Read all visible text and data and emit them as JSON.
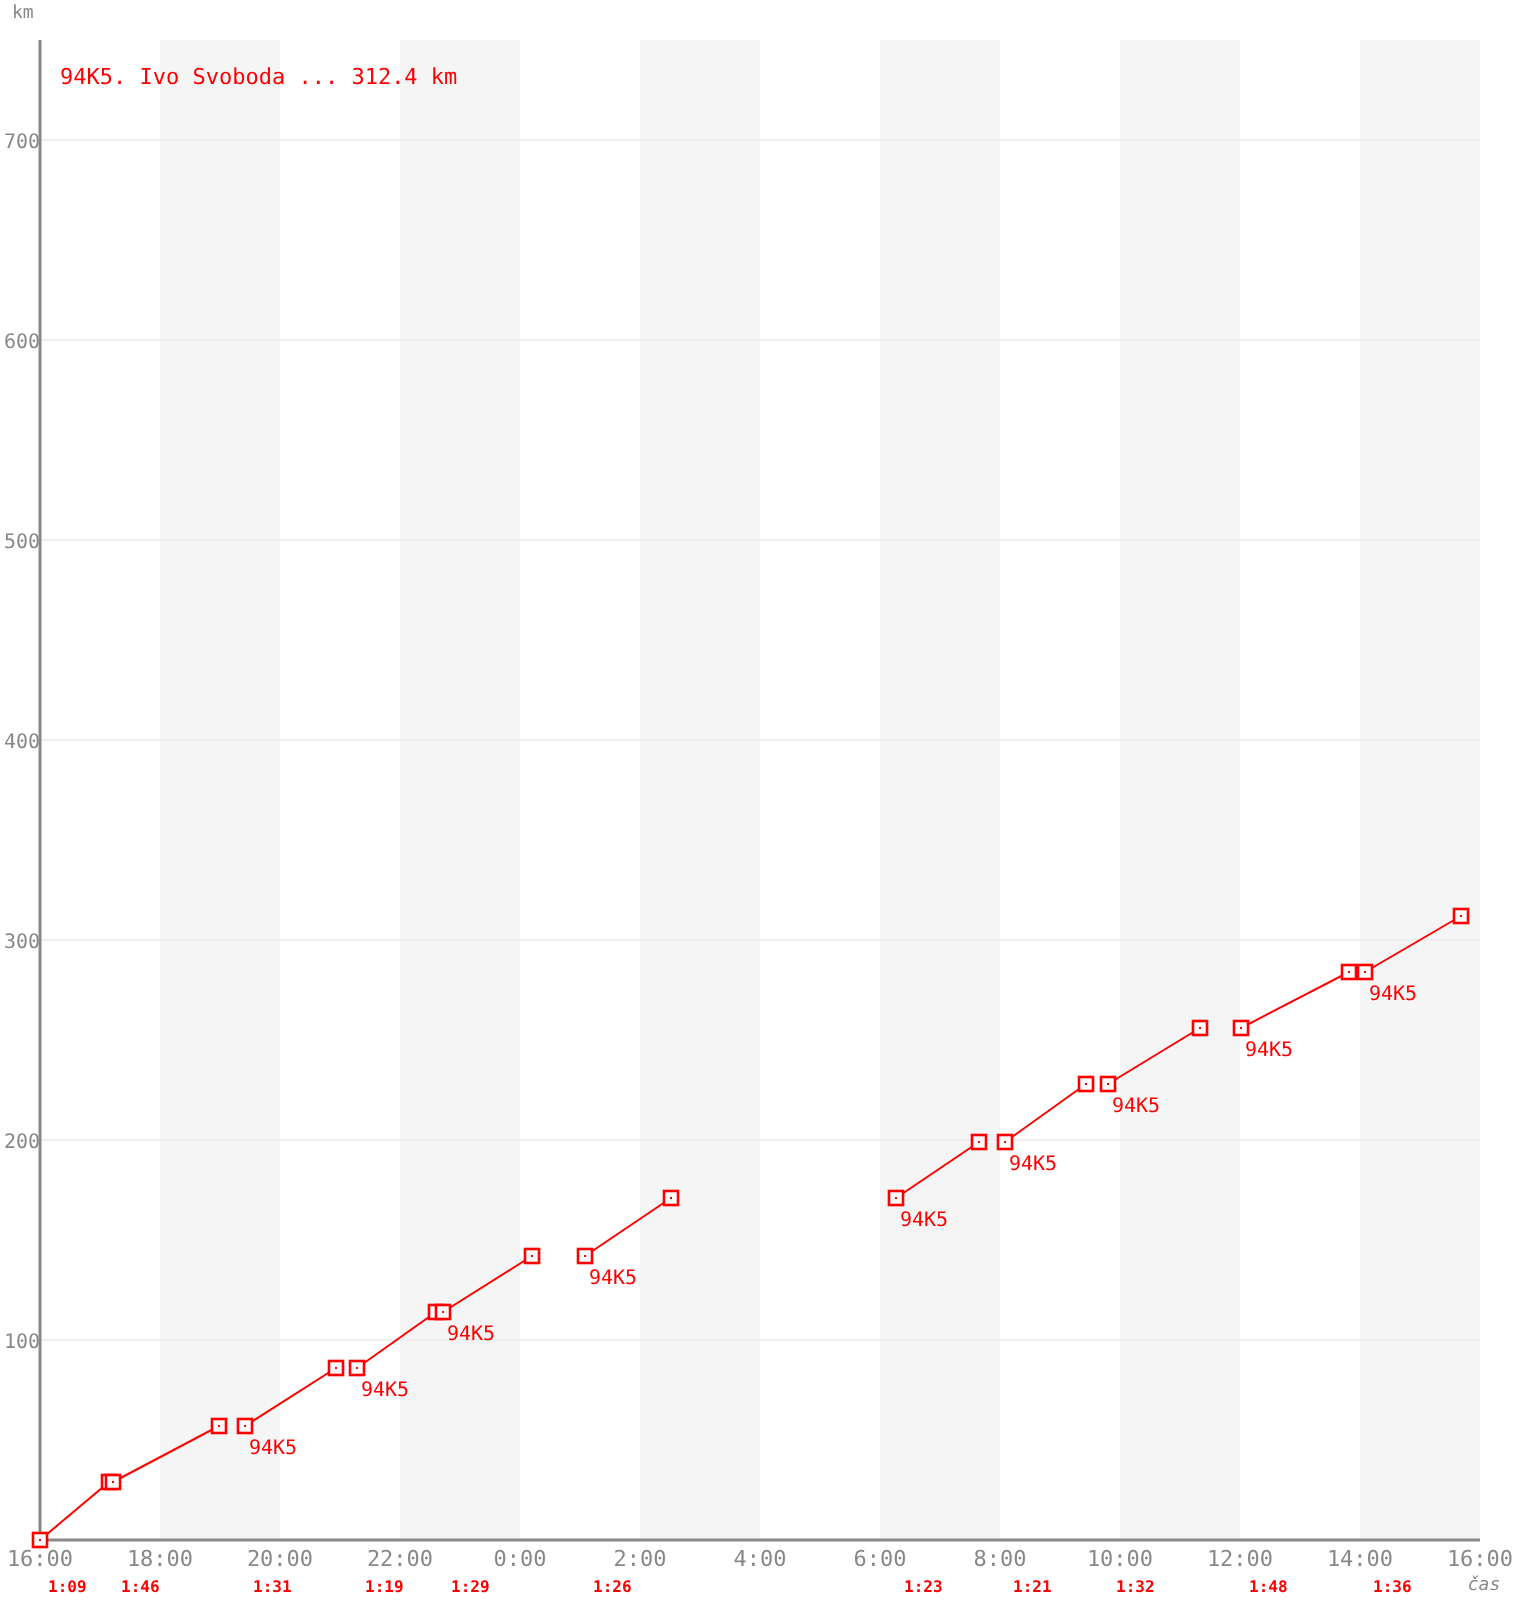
{
  "chart_data": {
    "type": "line",
    "xlabel": "čas",
    "ylabel": "km",
    "xlim": [
      "2000-01-01T16:00",
      "2000-01-02T16:00"
    ],
    "ylim": [
      0,
      750
    ],
    "xticks": [
      {
        "value": "2000-01-01T16:00",
        "label": "16:00"
      },
      {
        "value": "2000-01-01T18:00",
        "label": "18:00"
      },
      {
        "value": "2000-01-01T20:00",
        "label": "20:00"
      },
      {
        "value": "2000-01-01T22:00",
        "label": "22:00"
      },
      {
        "value": "2000-01-02T00:00",
        "label": "0:00"
      },
      {
        "value": "2000-01-02T02:00",
        "label": "2:00"
      },
      {
        "value": "2000-01-02T04:00",
        "label": "4:00"
      },
      {
        "value": "2000-01-02T06:00",
        "label": "6:00"
      },
      {
        "value": "2000-01-02T08:00",
        "label": "8:00"
      },
      {
        "value": "2000-01-02T10:00",
        "label": "10:00"
      },
      {
        "value": "2000-01-02T12:00",
        "label": "12:00"
      },
      {
        "value": "2000-01-02T14:00",
        "label": "14:00"
      },
      {
        "value": "2000-01-02T16:00",
        "label": "16:00"
      }
    ],
    "yticks": [
      100,
      200,
      300,
      400,
      500,
      600,
      700
    ],
    "grid": "y",
    "legend": "top left",
    "marker": "square",
    "line_style": "solid",
    "bands": [
      {
        "axis": "x",
        "from": "2000-01-01T18:00",
        "to": "2000-01-01T20:00",
        "color": "#f5f5f5"
      },
      {
        "axis": "x",
        "from": "2000-01-01T22:00",
        "to": "2000-01-02T00:00",
        "color": "#f5f5f5"
      },
      {
        "axis": "x",
        "from": "2000-01-02T02:00",
        "to": "2000-01-02T04:00",
        "color": "#f5f5f5"
      },
      {
        "axis": "x",
        "from": "2000-01-02T06:00",
        "to": "2000-01-02T08:00",
        "color": "#f5f5f5"
      },
      {
        "axis": "x",
        "from": "2000-01-02T10:00",
        "to": "2000-01-02T12:00",
        "color": "#f5f5f5"
      },
      {
        "axis": "x",
        "from": "2000-01-02T14:00",
        "to": "2000-01-02T16:00",
        "color": "#f5f5f5"
      }
    ],
    "series": [
      {
        "name": "94K5. Ivo Svoboda ... 312.4 km",
        "color": "#ff0000",
        "x": [
          "2000-01-01T16:00",
          "2000-01-01T17:09",
          "2000-01-01T17:13",
          "2000-01-01T18:59",
          "2000-01-01T19:12",
          "2000-01-01T19:25",
          "2000-01-01T20:56",
          "2000-01-01T21:06",
          "2000-01-01T21:17",
          "2000-01-01T22:36",
          "2000-01-01T22:43",
          "2000-01-02T00:12",
          "2000-01-02T00:40",
          "2000-01-02T01:05",
          "2000-01-02T02:31",
          "2000-01-02T04:00",
          "2000-01-02T06:16",
          "2000-01-02T07:39",
          "2000-01-02T07:52",
          "2000-01-02T08:05",
          "2000-01-02T09:26",
          "2000-01-02T09:37",
          "2000-01-02T09:48",
          "2000-01-02T11:20",
          "2000-01-02T11:40",
          "2000-01-02T12:01",
          "2000-01-02T13:49",
          "2000-01-02T14:05",
          "2000-01-02T15:41"
        ],
        "values": [
          0,
          29,
          29,
          57,
          null,
          57,
          86,
          null,
          86,
          114,
          114,
          142,
          null,
          142,
          171,
          null,
          171,
          199,
          null,
          199,
          228,
          null,
          228,
          256,
          null,
          256,
          284,
          284,
          312
        ]
      }
    ],
    "annotations": [
      {
        "text": "94K5",
        "x": "2000-01-01T19:25",
        "y": 57
      },
      {
        "text": "94K5",
        "x": "2000-01-01T21:17",
        "y": 86
      },
      {
        "text": "94K5",
        "x": "2000-01-01T22:43",
        "y": 114
      },
      {
        "text": "94K5",
        "x": "2000-01-02T01:05",
        "y": 142
      },
      {
        "text": "94K5",
        "x": "2000-01-02T06:16",
        "y": 171
      },
      {
        "text": "94K5",
        "x": "2000-01-02T08:05",
        "y": 199
      },
      {
        "text": "94K5",
        "x": "2000-01-02T09:48",
        "y": 228
      },
      {
        "text": "94K5",
        "x": "2000-01-02T12:01",
        "y": 256
      },
      {
        "text": "94K5",
        "x": "2000-01-02T14:05",
        "y": 284
      },
      "1:09",
      "1:46",
      "1:31",
      "1:19",
      "1:29",
      "1:26",
      "1:23",
      "1:21",
      "1:32",
      "1:48",
      "1:36"
    ]
  }
}
